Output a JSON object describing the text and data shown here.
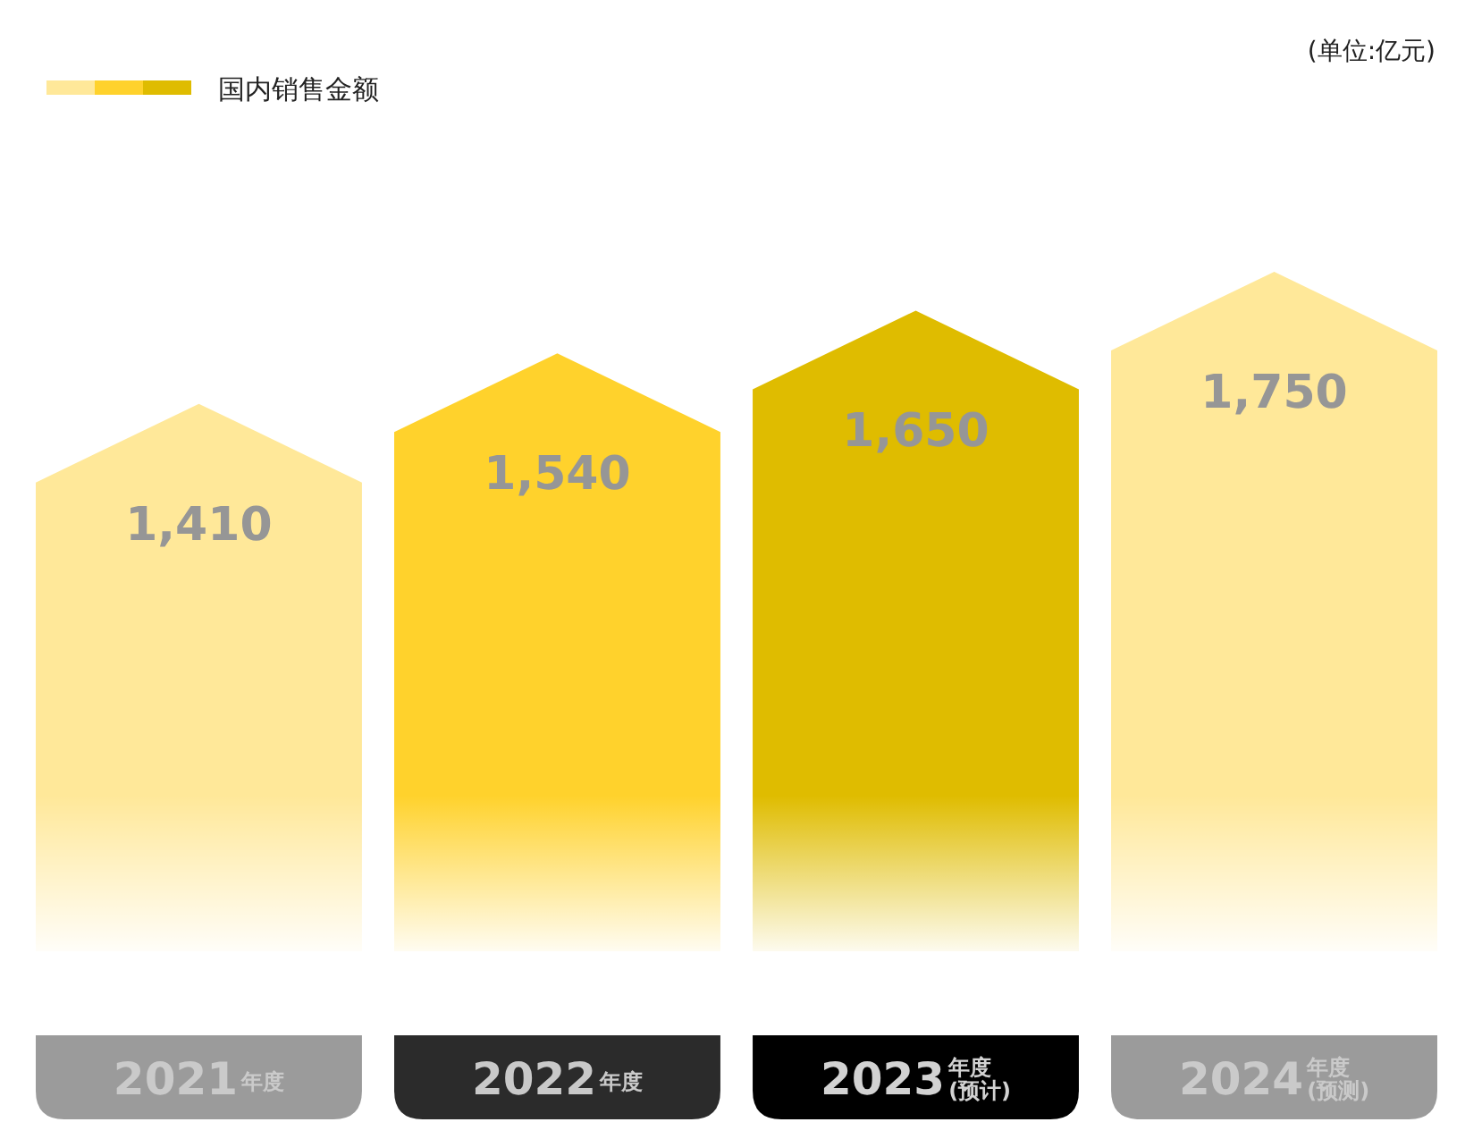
{
  "chart_data": {
    "type": "bar",
    "categories": [
      "2021$^{年度}$",
      "2022$^{年度}$",
      "2023$^{年度}$$_{(预计)}$",
      "2024$^{年度}$$_{(预测)}$"
    ],
    "series": [
      {
        "name": "国内销售金额",
        "colors": [
          "#ffe899",
          "#ffd22c",
          "#dfbc00",
          "#ffe899"
        ],
        "values": [
          1410,
          1540,
          1650,
          1750
        ],
        "value_labels": [
          "1,410",
          "1,540",
          "1,650",
          "1,750"
        ]
      }
    ],
    "legend": "top left",
    "annotations": [
      "(单位:亿元)"
    ]
  }
}
